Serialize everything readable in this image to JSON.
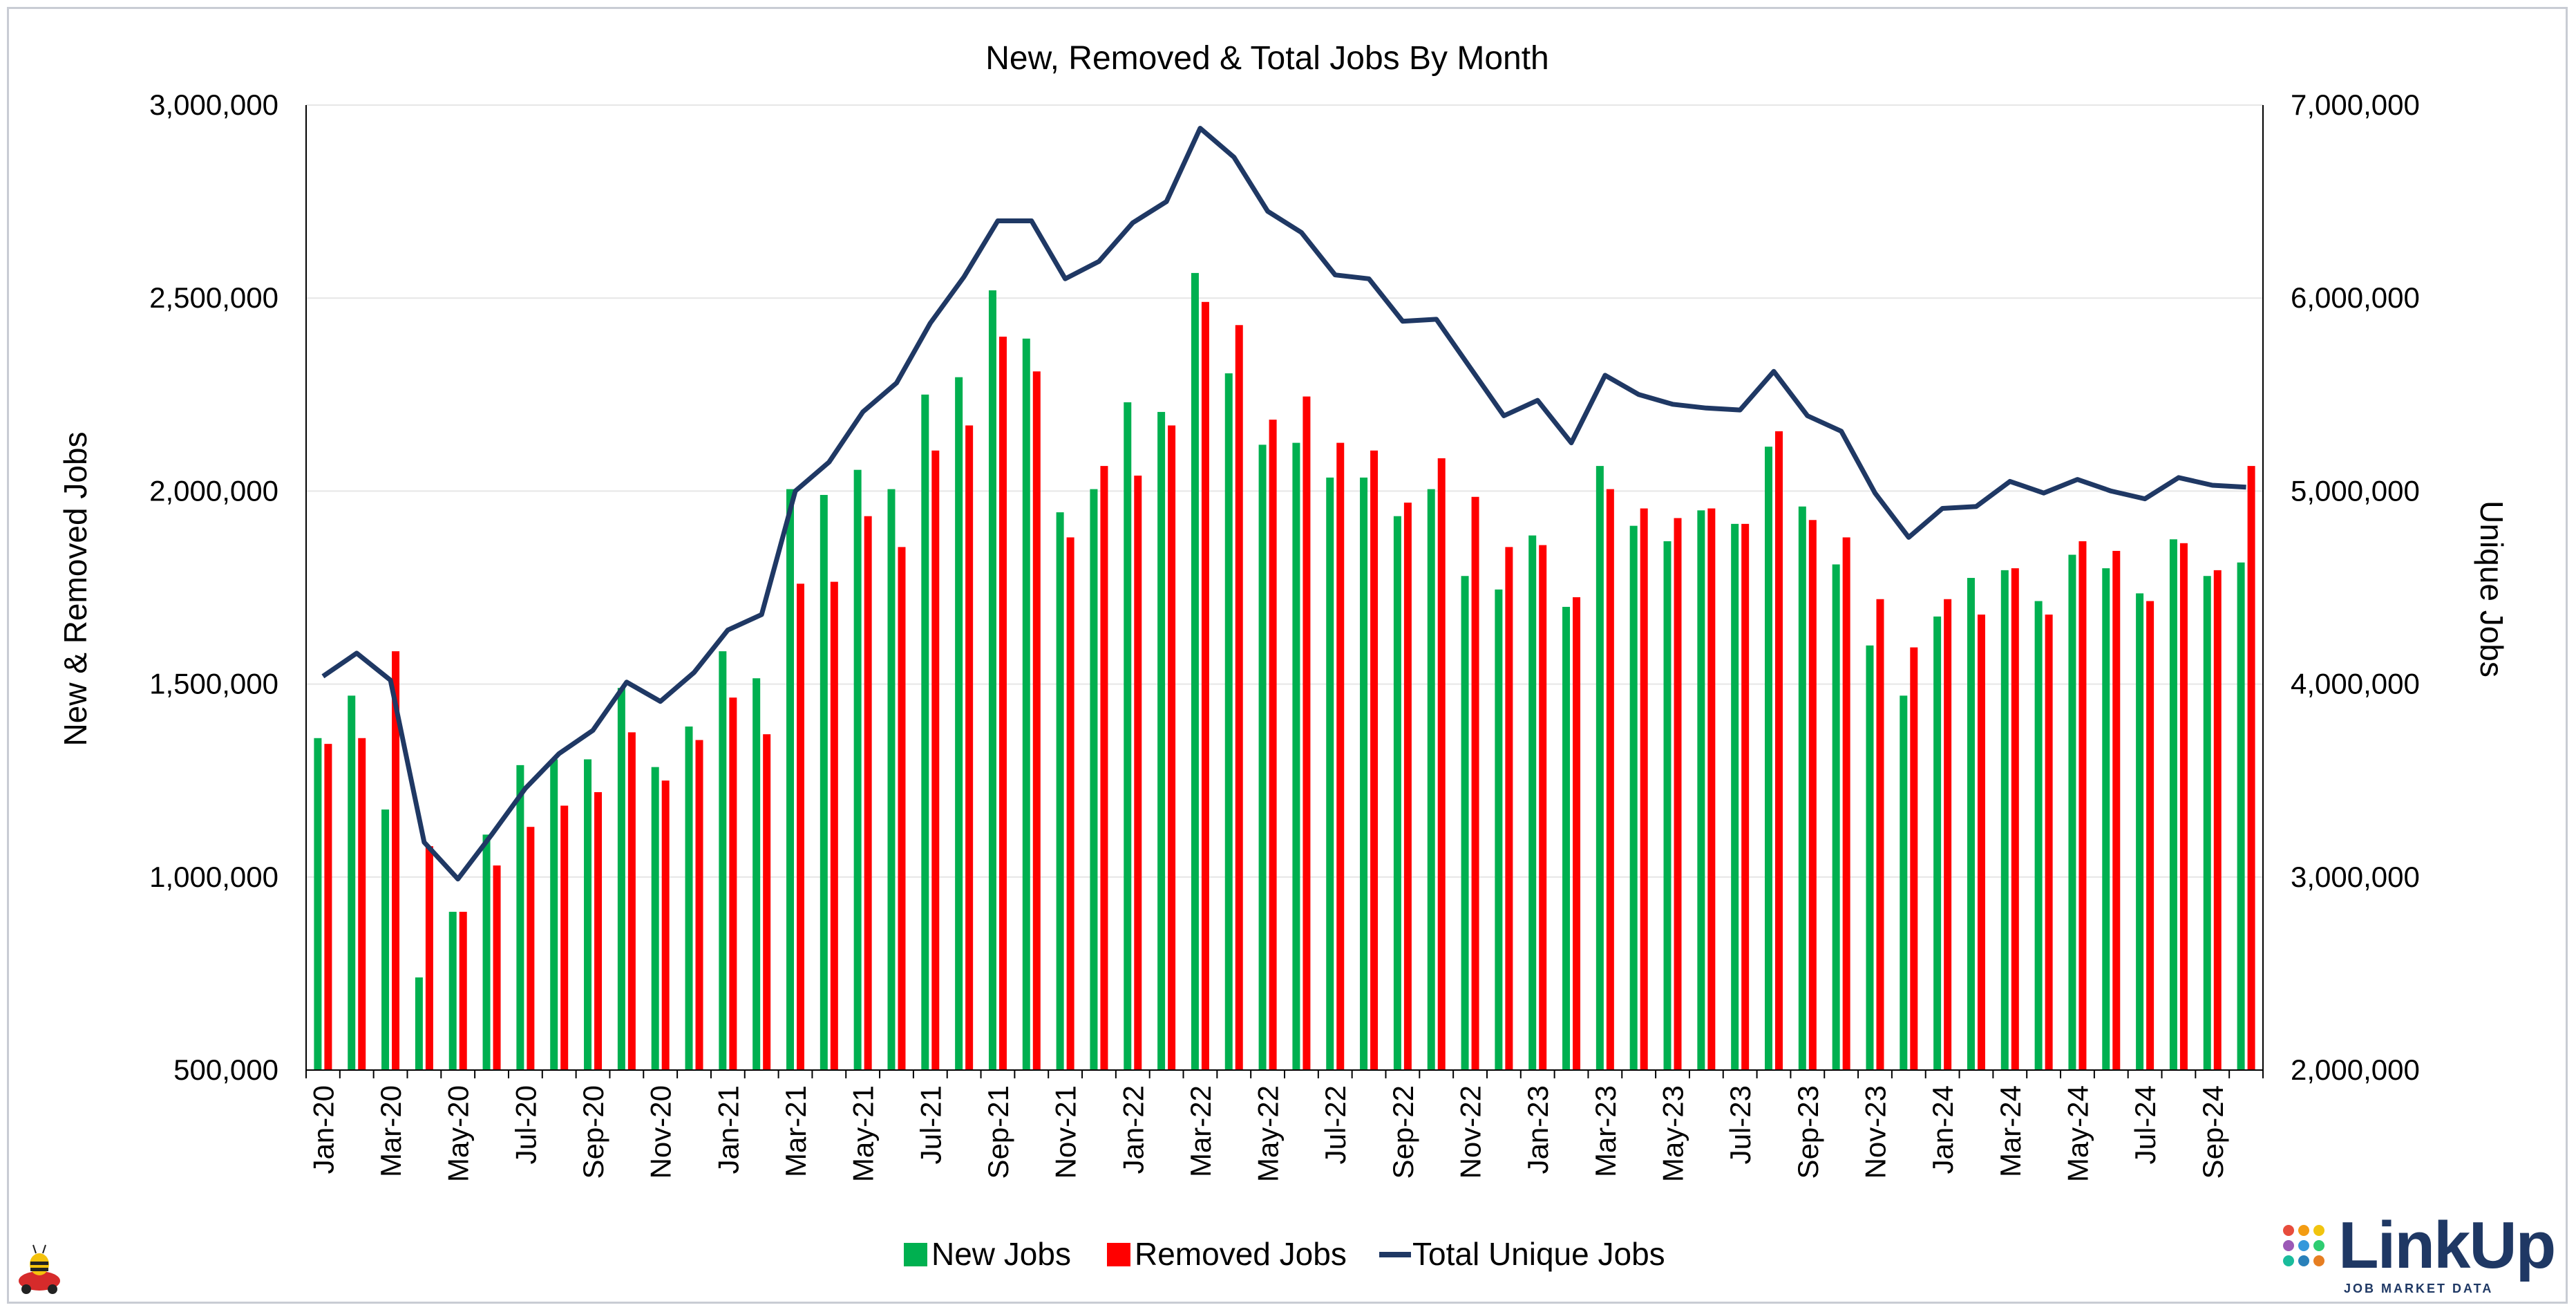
{
  "colors": {
    "new_jobs": "#00b050",
    "removed_jobs": "#ff0000",
    "total_unique": "#1f3864",
    "grid": "#e6e6e6"
  },
  "logo": {
    "name": "LinkUp",
    "sub": "JOB MARKET DATA",
    "icon": "dot-grid-icon"
  },
  "mascot": {
    "icon": "bee-car-icon"
  },
  "chart_data": {
    "type": "bar",
    "title": "New, Removed & Total Jobs By Month",
    "xlabel": "",
    "ylabel": "New & Removed Jobs",
    "y2label": "Unique Jobs",
    "ylim": [
      500000,
      3000000
    ],
    "y2lim": [
      2000000,
      7000000
    ],
    "y_ticks": [
      "500,000",
      "1,000,000",
      "1,500,000",
      "2,000,000",
      "2,500,000",
      "3,000,000"
    ],
    "y2_ticks": [
      "2,000,000",
      "3,000,000",
      "4,000,000",
      "5,000,000",
      "6,000,000",
      "7,000,000"
    ],
    "grid": true,
    "legend_position": "bottom",
    "categories": [
      "Jan-20",
      "Feb-20",
      "Mar-20",
      "Apr-20",
      "May-20",
      "Jun-20",
      "Jul-20",
      "Aug-20",
      "Sep-20",
      "Oct-20",
      "Nov-20",
      "Dec-20",
      "Jan-21",
      "Feb-21",
      "Mar-21",
      "Apr-21",
      "May-21",
      "Jun-21",
      "Jul-21",
      "Aug-21",
      "Sep-21",
      "Oct-21",
      "Nov-21",
      "Dec-21",
      "Jan-22",
      "Feb-22",
      "Mar-22",
      "Apr-22",
      "May-22",
      "Jun-22",
      "Jul-22",
      "Aug-22",
      "Sep-22",
      "Oct-22",
      "Nov-22",
      "Dec-22",
      "Jan-23",
      "Feb-23",
      "Mar-23",
      "Apr-23",
      "May-23",
      "Jun-23",
      "Jul-23",
      "Aug-23",
      "Sep-23",
      "Oct-23",
      "Nov-23",
      "Dec-23",
      "Jan-24",
      "Feb-24",
      "Mar-24",
      "Apr-24",
      "May-24",
      "Jun-24",
      "Jul-24",
      "Aug-24",
      "Sep-24",
      "Oct-24"
    ],
    "x_tick_labels": [
      "Jan-20",
      "Mar-20",
      "May-20",
      "Jul-20",
      "Sep-20",
      "Nov-20",
      "Jan-21",
      "Mar-21",
      "May-21",
      "Jul-21",
      "Sep-21",
      "Nov-21",
      "Jan-22",
      "Mar-22",
      "May-22",
      "Jul-22",
      "Sep-22",
      "Nov-22",
      "Jan-23",
      "Mar-23",
      "May-23",
      "Jul-23",
      "Sep-23",
      "Nov-23",
      "Jan-24",
      "Mar-24",
      "May-24",
      "Jul-24",
      "Sep-24"
    ],
    "series": [
      {
        "name": "New Jobs",
        "axis": "left",
        "kind": "bar",
        "values": [
          1360000,
          1470000,
          1175000,
          740000,
          910000,
          1110000,
          1290000,
          1305000,
          1305000,
          1490000,
          1285000,
          1390000,
          1585000,
          1515000,
          2005000,
          1990000,
          2055000,
          2005000,
          2250000,
          2295000,
          2520000,
          2395000,
          1945000,
          2005000,
          2230000,
          2205000,
          2565000,
          2305000,
          2120000,
          2125000,
          2035000,
          2035000,
          1935000,
          2005000,
          1780000,
          1745000,
          1885000,
          1700000,
          2065000,
          1910000,
          1870000,
          1950000,
          1915000,
          2115000,
          1960000,
          1810000,
          1600000,
          1470000,
          1675000,
          1775000,
          1795000,
          1715000,
          1835000,
          1800000,
          1735000,
          1875000,
          1780000,
          1815000
        ]
      },
      {
        "name": "Removed Jobs",
        "axis": "left",
        "kind": "bar",
        "values": [
          1345000,
          1360000,
          1585000,
          1080000,
          910000,
          1030000,
          1130000,
          1185000,
          1220000,
          1375000,
          1250000,
          1355000,
          1465000,
          1370000,
          1760000,
          1765000,
          1935000,
          1855000,
          2105000,
          2170000,
          2400000,
          2310000,
          1880000,
          2065000,
          2040000,
          2170000,
          2490000,
          2430000,
          2185000,
          2245000,
          2125000,
          2105000,
          1970000,
          2085000,
          1985000,
          1855000,
          1860000,
          1725000,
          2005000,
          1955000,
          1930000,
          1955000,
          1915000,
          2155000,
          1925000,
          1880000,
          1720000,
          1595000,
          1720000,
          1680000,
          1800000,
          1680000,
          1870000,
          1845000,
          1715000,
          1865000,
          1795000,
          2065000
        ]
      },
      {
        "name": "Total Unique Jobs",
        "axis": "right",
        "kind": "line",
        "values": [
          4040000,
          4160000,
          4020000,
          3180000,
          2990000,
          3220000,
          3460000,
          3640000,
          3760000,
          4010000,
          3910000,
          4060000,
          4280000,
          4360000,
          5000000,
          5150000,
          5410000,
          5560000,
          5870000,
          6110000,
          6400000,
          6400000,
          6100000,
          6190000,
          6390000,
          6500000,
          6880000,
          6730000,
          6450000,
          6340000,
          6120000,
          6100000,
          5880000,
          5890000,
          5640000,
          5390000,
          5470000,
          5250000,
          5600000,
          5500000,
          5450000,
          5430000,
          5420000,
          5620000,
          5390000,
          5310000,
          4990000,
          4760000,
          4910000,
          4920000,
          5050000,
          4990000,
          5060000,
          5000000,
          4960000,
          5070000,
          5030000,
          5020000
        ]
      }
    ]
  }
}
